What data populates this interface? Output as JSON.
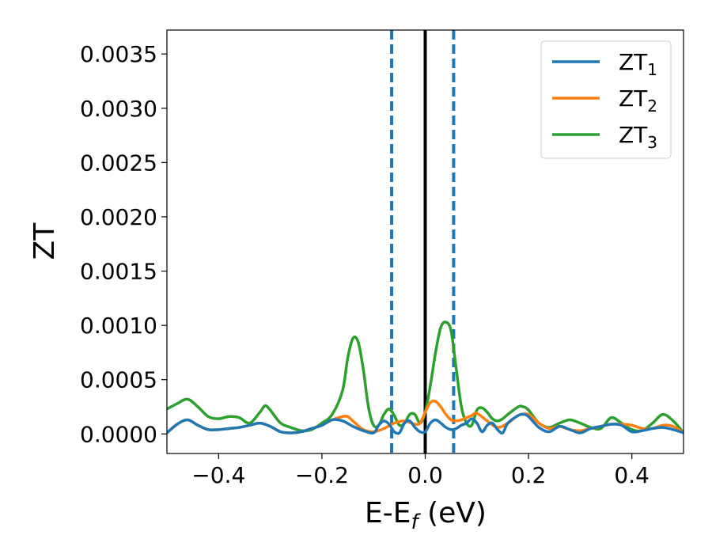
{
  "chart_data": {
    "type": "line",
    "xlabel": "E-E",
    "xlabel_sub": "f",
    "xlabel_unit": " (eV)",
    "ylabel": "ZT",
    "xlim": [
      -0.5,
      0.5
    ],
    "ylim": [
      -0.00018,
      0.00372
    ],
    "xticks": [
      -0.4,
      -0.2,
      0.0,
      0.2,
      0.4
    ],
    "xtick_labels": [
      "−0.4",
      "−0.2",
      "0.0",
      "0.2",
      "0.4"
    ],
    "yticks": [
      0.0,
      0.0005,
      0.001,
      0.0015,
      0.002,
      0.0025,
      0.003,
      0.0035
    ],
    "ytick_labels": [
      "0.0000",
      "0.0005",
      "0.0010",
      "0.0015",
      "0.0020",
      "0.0025",
      "0.0030",
      "0.0035"
    ],
    "grid": false,
    "legend_position": "top-right",
    "vlines": [
      {
        "x": -0.065,
        "style": "dashed",
        "color": "#1f77b4"
      },
      {
        "x": 0.0,
        "style": "solid",
        "color": "#000000"
      },
      {
        "x": 0.055,
        "style": "dashed",
        "color": "#1f77b4"
      }
    ],
    "series": [
      {
        "name": "ZT",
        "name_sub": "1",
        "color": "#1f77b4",
        "x": [
          -0.5,
          -0.48,
          -0.46,
          -0.44,
          -0.42,
          -0.4,
          -0.38,
          -0.36,
          -0.34,
          -0.32,
          -0.3,
          -0.28,
          -0.26,
          -0.24,
          -0.22,
          -0.2,
          -0.18,
          -0.16,
          -0.14,
          -0.12,
          -0.1,
          -0.09,
          -0.08,
          -0.07,
          -0.06,
          -0.05,
          -0.04,
          -0.03,
          -0.02,
          -0.01,
          0.0,
          0.01,
          0.02,
          0.03,
          0.04,
          0.05,
          0.06,
          0.07,
          0.08,
          0.09,
          0.1,
          0.11,
          0.12,
          0.13,
          0.14,
          0.15,
          0.16,
          0.18,
          0.19,
          0.2,
          0.22,
          0.24,
          0.26,
          0.28,
          0.3,
          0.32,
          0.34,
          0.36,
          0.38,
          0.4,
          0.42,
          0.44,
          0.46,
          0.48,
          0.5
        ],
        "y": [
          1e-05,
          9e-05,
          0.00013,
          8e-05,
          4e-05,
          4e-05,
          5e-05,
          6e-05,
          8e-05,
          0.0001,
          7e-05,
          2e-05,
          1e-05,
          2e-05,
          5e-05,
          8e-05,
          0.00013,
          0.00012,
          7e-05,
          3e-05,
          1e-05,
          8e-05,
          0.00012,
          9e-05,
          2e-05,
          1e-05,
          0.0001,
          0.00012,
          6e-05,
          2e-05,
          2e-05,
          0.0001,
          0.00013,
          0.0001,
          6e-05,
          4e-05,
          5e-05,
          8e-05,
          0.0001,
          0.00014,
          0.0001,
          2e-05,
          8e-05,
          0.0001,
          4e-05,
          1e-05,
          0.0001,
          0.00017,
          0.00018,
          0.00016,
          6e-05,
          2e-05,
          7e-05,
          4e-05,
          1e-05,
          5e-05,
          7e-05,
          9e-05,
          8e-05,
          2e-05,
          3e-05,
          5e-05,
          6e-05,
          4e-05,
          1e-05
        ]
      },
      {
        "name": "ZT",
        "name_sub": "2",
        "color": "#ff7f0e",
        "x": [
          -0.5,
          -0.48,
          -0.46,
          -0.44,
          -0.42,
          -0.4,
          -0.38,
          -0.36,
          -0.34,
          -0.32,
          -0.3,
          -0.28,
          -0.26,
          -0.24,
          -0.22,
          -0.2,
          -0.18,
          -0.16,
          -0.15,
          -0.14,
          -0.12,
          -0.1,
          -0.08,
          -0.06,
          -0.04,
          -0.02,
          -0.01,
          0.0,
          0.01,
          0.02,
          0.03,
          0.04,
          0.05,
          0.06,
          0.07,
          0.08,
          0.09,
          0.1,
          0.12,
          0.14,
          0.16,
          0.18,
          0.2,
          0.22,
          0.24,
          0.26,
          0.28,
          0.3,
          0.32,
          0.34,
          0.36,
          0.38,
          0.4,
          0.42,
          0.44,
          0.46,
          0.48,
          0.5
        ],
        "y": [
          1e-05,
          9e-05,
          0.00013,
          8e-05,
          4e-05,
          4e-05,
          5e-05,
          6e-05,
          8e-05,
          0.0001,
          7e-05,
          2e-05,
          1e-05,
          2e-05,
          5e-05,
          8e-05,
          0.00013,
          0.00016,
          0.00016,
          0.00012,
          4e-05,
          2e-05,
          5e-05,
          0.0001,
          0.00012,
          9e-05,
          0.0001,
          0.0002,
          0.00029,
          0.0003,
          0.00025,
          0.00018,
          0.00013,
          0.00012,
          0.00013,
          0.00015,
          0.00017,
          0.00019,
          0.00012,
          6e-05,
          0.0001,
          0.00017,
          0.00018,
          0.0001,
          5e-05,
          7e-05,
          4e-05,
          3e-05,
          5e-05,
          7e-05,
          9e-05,
          9e-05,
          8e-05,
          5e-05,
          5e-05,
          8e-05,
          7e-05,
          1e-05
        ]
      },
      {
        "name": "ZT",
        "name_sub": "3",
        "color": "#2ca02c",
        "x": [
          -0.5,
          -0.48,
          -0.46,
          -0.44,
          -0.42,
          -0.4,
          -0.38,
          -0.36,
          -0.34,
          -0.32,
          -0.31,
          -0.3,
          -0.28,
          -0.26,
          -0.24,
          -0.22,
          -0.2,
          -0.18,
          -0.16,
          -0.15,
          -0.14,
          -0.13,
          -0.12,
          -0.11,
          -0.1,
          -0.09,
          -0.08,
          -0.07,
          -0.06,
          -0.05,
          -0.04,
          -0.03,
          -0.02,
          -0.01,
          0.0,
          0.01,
          0.02,
          0.03,
          0.04,
          0.05,
          0.06,
          0.07,
          0.08,
          0.09,
          0.1,
          0.11,
          0.12,
          0.13,
          0.14,
          0.15,
          0.16,
          0.18,
          0.19,
          0.2,
          0.22,
          0.24,
          0.26,
          0.28,
          0.3,
          0.32,
          0.34,
          0.36,
          0.38,
          0.4,
          0.42,
          0.44,
          0.46,
          0.48,
          0.5
        ],
        "y": [
          0.00023,
          0.00028,
          0.00032,
          0.00025,
          0.00016,
          0.00014,
          0.00016,
          0.00015,
          0.0001,
          0.0002,
          0.00026,
          0.00022,
          0.0001,
          6e-05,
          3e-05,
          4e-05,
          0.0001,
          0.00018,
          0.0004,
          0.0007,
          0.00088,
          0.00085,
          0.0006,
          0.00025,
          8e-05,
          8e-05,
          0.00018,
          0.00023,
          0.00017,
          8e-05,
          0.0001,
          0.00018,
          0.00018,
          0.0001,
          0.0002,
          0.00045,
          0.00075,
          0.00098,
          0.00103,
          0.00095,
          0.0006,
          0.00025,
          0.0001,
          8e-05,
          0.00022,
          0.00024,
          0.0002,
          0.00014,
          0.00012,
          0.00014,
          0.00018,
          0.00025,
          0.00025,
          0.00022,
          0.0001,
          6e-05,
          0.0001,
          0.00013,
          0.0001,
          6e-05,
          5e-05,
          0.00015,
          0.0001,
          4e-05,
          3e-05,
          0.0001,
          0.00018,
          0.00012,
          1e-05
        ]
      }
    ]
  }
}
